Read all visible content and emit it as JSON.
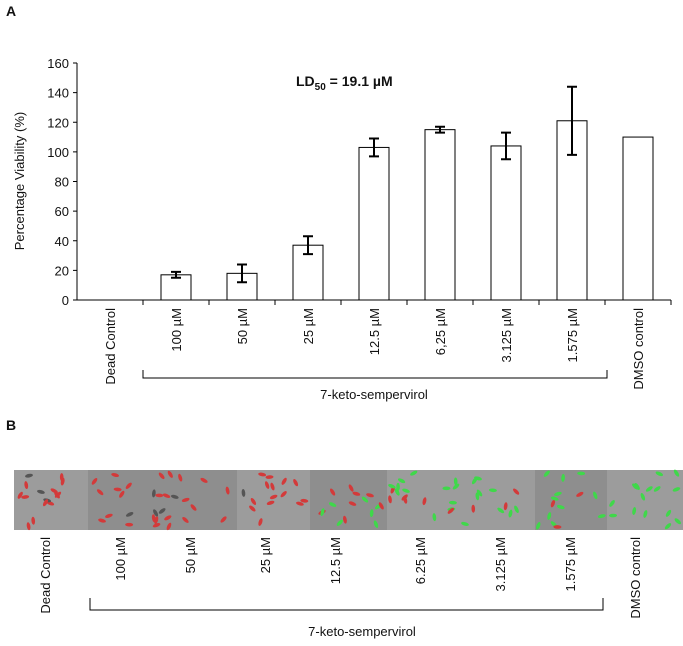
{
  "chart_data": {
    "type": "bar",
    "panel_label": "A",
    "annotation": [
      "LD",
      "50",
      " = 19.1 µM"
    ],
    "ylabel": "Percentage Viability (%)",
    "categories": [
      "Dead Control",
      "100 µM",
      "50 µM",
      "25 µM",
      "12.5 µM",
      "6,25 µM",
      "3.125 µM",
      "1.575 µM",
      "DMSO control"
    ],
    "values": [
      0,
      17,
      18,
      37,
      103,
      115,
      104,
      121,
      110
    ],
    "errors": [
      null,
      2,
      6,
      6,
      6,
      2,
      9,
      23,
      null
    ],
    "group_label": "7-keto-sempervirol",
    "color": "#ffffff",
    "edge_color": "#000000",
    "ylim": [
      0,
      160
    ],
    "yticks": [
      0,
      20,
      40,
      60,
      80,
      100,
      120,
      140,
      160
    ],
    "grid": false
  },
  "panel_b": {
    "label": "B",
    "categories": [
      "Dead Control",
      "100 µM",
      "50 µM",
      "25 µM",
      "12.5 µM",
      "6.25 µM",
      "3.125 µM",
      "1.575 µM",
      "DMSO control"
    ],
    "group_label": "7-keto-sempervirol"
  }
}
